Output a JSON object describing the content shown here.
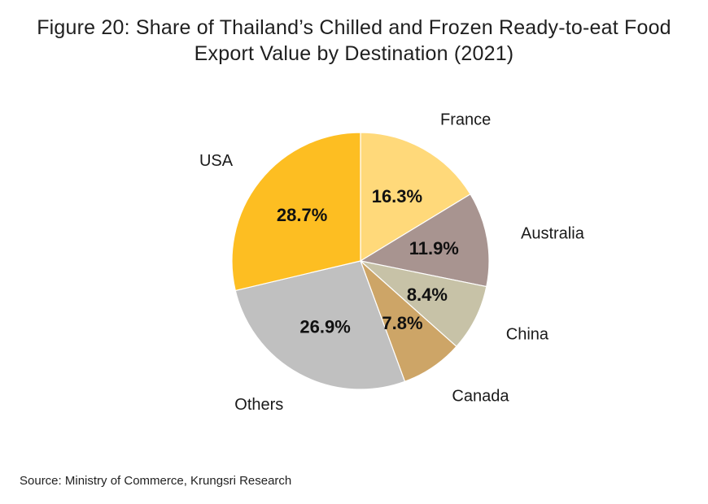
{
  "figure": {
    "title_line1": "Figure 20: Share of Thailand’s Chilled and Frozen Ready-to-eat Food",
    "title_line2": "Export Value by Destination (2021)",
    "source": "Source: Ministry of Commerce, Krungsri Research"
  },
  "chart_data": {
    "type": "pie",
    "title": "Figure 20: Share of Thailand’s Chilled and Frozen Ready-to-eat Food Export Value by Destination (2021)",
    "unit": "%",
    "slices": [
      {
        "label": "France",
        "value": 16.3,
        "display": "16.3%",
        "color": "#FFD97A"
      },
      {
        "label": "Australia",
        "value": 11.9,
        "display": "11.9%",
        "color": "#A89490"
      },
      {
        "label": "China",
        "value": 8.4,
        "display": "8.4%",
        "color": "#C7C2A7"
      },
      {
        "label": "Canada",
        "value": 7.8,
        "display": "7.8%",
        "color": "#CDA567"
      },
      {
        "label": "Others",
        "value": 26.9,
        "display": "26.9%",
        "color": "#C0C0C0"
      },
      {
        "label": "USA",
        "value": 28.7,
        "display": "28.7%",
        "color": "#FDBE22"
      }
    ],
    "start": "12 o'clock",
    "direction": "clockwise",
    "legend": "none (category labels outside slices)"
  }
}
